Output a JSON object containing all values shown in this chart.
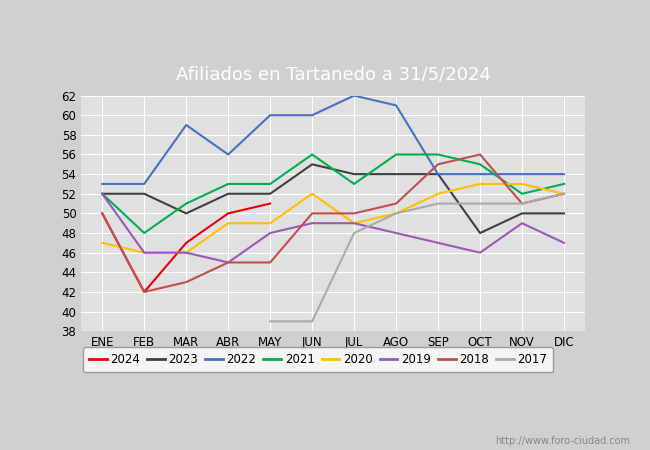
{
  "title": "Afiliados en Tartanedo a 31/5/2024",
  "title_color": "white",
  "title_bg_color": "#4472c4",
  "xlabel": "",
  "ylabel": "",
  "ylim": [
    38,
    62
  ],
  "yticks": [
    38,
    40,
    42,
    44,
    46,
    48,
    50,
    52,
    54,
    56,
    58,
    60,
    62
  ],
  "months": [
    "ENE",
    "FEB",
    "MAR",
    "ABR",
    "MAY",
    "JUN",
    "JUL",
    "AGO",
    "SEP",
    "OCT",
    "NOV",
    "DIC"
  ],
  "series": {
    "2024": {
      "color": "#e8000d",
      "values": [
        50,
        42,
        47,
        50,
        51,
        null,
        null,
        null,
        null,
        null,
        null,
        null
      ]
    },
    "2023": {
      "color": "#404040",
      "values": [
        52,
        52,
        50,
        52,
        52,
        55,
        54,
        54,
        54,
        48,
        50,
        50
      ]
    },
    "2022": {
      "color": "#4472c4",
      "values": [
        53,
        53,
        59,
        56,
        60,
        60,
        62,
        61,
        54,
        54,
        54,
        54
      ]
    },
    "2021": {
      "color": "#00b050",
      "values": [
        52,
        48,
        51,
        53,
        53,
        56,
        53,
        56,
        56,
        55,
        52,
        53
      ]
    },
    "2020": {
      "color": "#ffc000",
      "values": [
        47,
        46,
        46,
        49,
        49,
        52,
        49,
        50,
        52,
        53,
        53,
        52
      ]
    },
    "2019": {
      "color": "#9b59b6",
      "values": [
        52,
        46,
        46,
        45,
        48,
        49,
        49,
        48,
        47,
        46,
        49,
        47
      ]
    },
    "2018": {
      "color": "#c0504d",
      "values": [
        50,
        42,
        43,
        45,
        45,
        50,
        50,
        51,
        55,
        56,
        51,
        52
      ]
    },
    "2017": {
      "color": "#aaaaaa",
      "values": [
        null,
        null,
        null,
        null,
        39,
        39,
        48,
        50,
        51,
        51,
        51,
        52
      ]
    }
  },
  "legend_order": [
    "2024",
    "2023",
    "2022",
    "2021",
    "2020",
    "2019",
    "2018",
    "2017"
  ],
  "fig_bg_color": "#d0d0d0",
  "plot_bg_color": "#e0e0e0",
  "grid_color": "white",
  "watermark": "http://www.foro-ciudad.com"
}
